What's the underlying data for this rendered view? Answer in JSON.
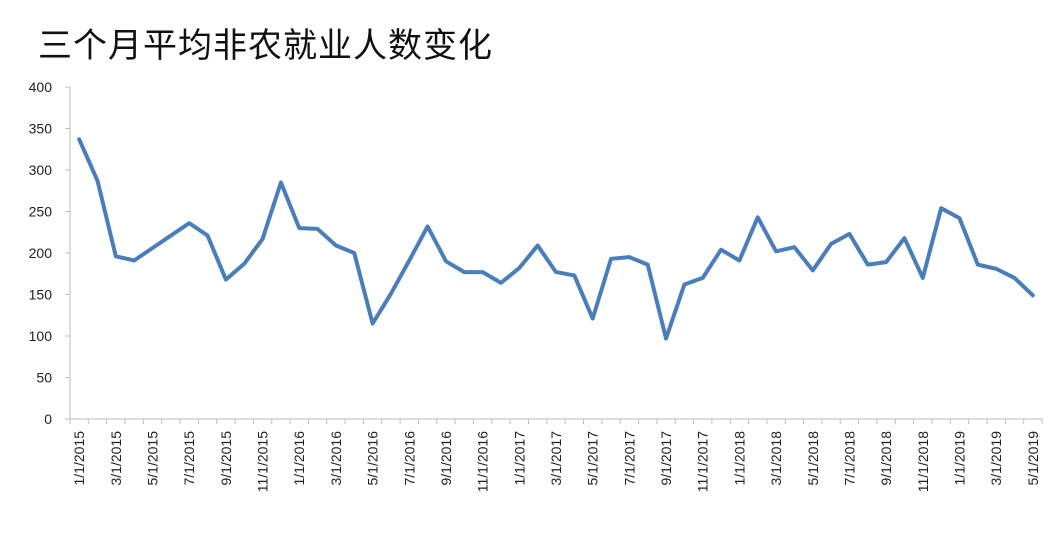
{
  "chart_data": {
    "type": "line",
    "title": "三个月平均非农就业人数变化",
    "xlabel": "",
    "ylabel": "",
    "ylim": [
      0,
      400
    ],
    "yticks": [
      0,
      50,
      100,
      150,
      200,
      250,
      300,
      350,
      400
    ],
    "xtick_labels": [
      "1/1/2015",
      "3/1/2015",
      "5/1/2015",
      "7/1/2015",
      "9/1/2015",
      "11/1/2015",
      "1/1/2016",
      "3/1/2016",
      "5/1/2016",
      "7/1/2016",
      "9/1/2016",
      "11/1/2016",
      "1/1/2017",
      "3/1/2017",
      "5/1/2017",
      "7/1/2017",
      "9/1/2017",
      "11/1/2017",
      "1/1/2018",
      "3/1/2018",
      "5/1/2018",
      "7/1/2018",
      "9/1/2018",
      "11/1/2018",
      "1/1/2019",
      "3/1/2019",
      "5/1/2019"
    ],
    "grid": false,
    "legend": "none",
    "line_color": "#4a7ebb",
    "x": [
      "1/1/2015",
      "2/1/2015",
      "3/1/2015",
      "4/1/2015",
      "5/1/2015",
      "6/1/2015",
      "7/1/2015",
      "8/1/2015",
      "9/1/2015",
      "10/1/2015",
      "11/1/2015",
      "12/1/2015",
      "1/1/2016",
      "2/1/2016",
      "3/1/2016",
      "4/1/2016",
      "5/1/2016",
      "6/1/2016",
      "7/1/2016",
      "8/1/2016",
      "9/1/2016",
      "10/1/2016",
      "11/1/2016",
      "12/1/2016",
      "1/1/2017",
      "2/1/2017",
      "3/1/2017",
      "4/1/2017",
      "5/1/2017",
      "6/1/2017",
      "7/1/2017",
      "8/1/2017",
      "9/1/2017",
      "10/1/2017",
      "11/1/2017",
      "12/1/2017",
      "1/1/2018",
      "2/1/2018",
      "3/1/2018",
      "4/1/2018",
      "5/1/2018",
      "6/1/2018",
      "7/1/2018",
      "8/1/2018",
      "9/1/2018",
      "10/1/2018",
      "11/1/2018",
      "12/1/2018",
      "1/1/2019",
      "2/1/2019",
      "3/1/2019",
      "4/1/2019",
      "5/1/2019"
    ],
    "series": [
      {
        "values": [
          337,
          287,
          196,
          191,
          206,
          221,
          236,
          221,
          168,
          187,
          217,
          285,
          230,
          229,
          209,
          200,
          115,
          151,
          191,
          232,
          190,
          177,
          177,
          164,
          182,
          209,
          177,
          173,
          121,
          193,
          195,
          186,
          97,
          162,
          170,
          204,
          191,
          243,
          202,
          207,
          179,
          211,
          223,
          186,
          189,
          218,
          170,
          254,
          242,
          186,
          181,
          170,
          149
        ]
      }
    ]
  }
}
